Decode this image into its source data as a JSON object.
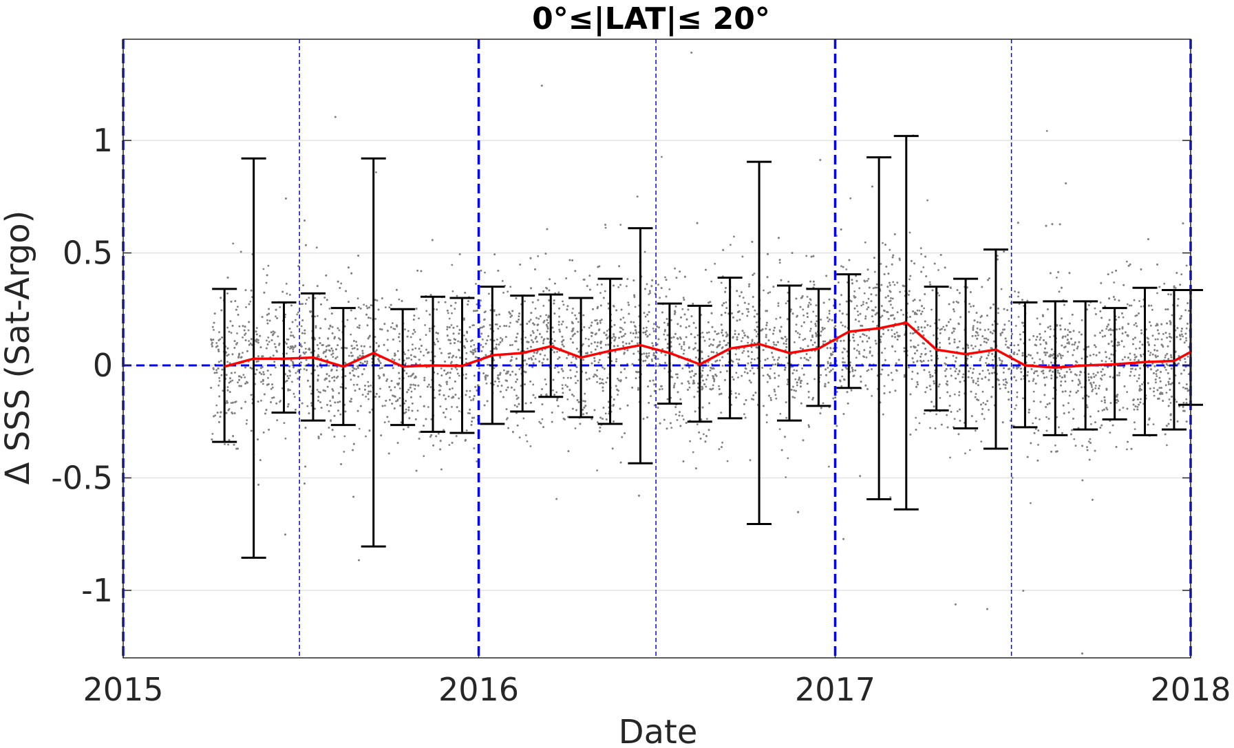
{
  "chart_data": {
    "type": "scatter",
    "title": "0°≤|LAT|≤ 20°",
    "xlabel": "Date",
    "ylabel": "Δ SSS (Sat-Argo)",
    "xlim": [
      "2015-01-01",
      "2018-01-01"
    ],
    "ylim": [
      -1.3,
      1.45
    ],
    "x_ticks": [
      {
        "value": "2015-01-01",
        "label": "2015"
      },
      {
        "value": "2016-01-01",
        "label": "2016"
      },
      {
        "value": "2017-01-01",
        "label": "2017"
      },
      {
        "value": "2018-01-01",
        "label": "2018"
      }
    ],
    "y_ticks": [
      {
        "value": -1,
        "label": "-1"
      },
      {
        "value": -0.5,
        "label": "-0.5"
      },
      {
        "value": 0,
        "label": "0"
      },
      {
        "value": 0.5,
        "label": "0.5"
      },
      {
        "value": 1,
        "label": "1"
      }
    ],
    "grid": "horizontal",
    "colors": {
      "scatter": "#808080",
      "mean_line": "#ff0000",
      "error_bars": "#000000",
      "reference_lines": "#0000ff",
      "grid": "#e3e3e3",
      "axes": "#262626"
    },
    "vertical_reference_lines": [
      {
        "date": "2015-01-01",
        "style": "thick-dashed"
      },
      {
        "date": "2015-07-01",
        "style": "thin-dashed"
      },
      {
        "date": "2016-01-01",
        "style": "thick-dashed"
      },
      {
        "date": "2016-07-01",
        "style": "thin-dashed"
      },
      {
        "date": "2017-01-01",
        "style": "thick-dashed"
      },
      {
        "date": "2017-07-01",
        "style": "thin-dashed"
      },
      {
        "date": "2018-01-01",
        "style": "thick-dashed"
      }
    ],
    "horizontal_reference_line": {
      "y": 0,
      "style": "dashed"
    },
    "scatter_cloud": {
      "date_start": "2015-04-01",
      "date_end": "2018-01-01",
      "typical_spread": 0.3
    },
    "monthly_stats": [
      {
        "date": "2015-04-15",
        "mean": -0.005,
        "lower": -0.34,
        "upper": 0.34
      },
      {
        "date": "2015-05-15",
        "mean": 0.03,
        "lower": -0.855,
        "upper": 0.92
      },
      {
        "date": "2015-06-15",
        "mean": 0.03,
        "lower": -0.21,
        "upper": 0.28
      },
      {
        "date": "2015-07-15",
        "mean": 0.035,
        "lower": -0.245,
        "upper": 0.32
      },
      {
        "date": "2015-08-15",
        "mean": -0.005,
        "lower": -0.265,
        "upper": 0.255
      },
      {
        "date": "2015-09-15",
        "mean": 0.055,
        "lower": -0.805,
        "upper": 0.92
      },
      {
        "date": "2015-10-15",
        "mean": -0.005,
        "lower": -0.265,
        "upper": 0.25
      },
      {
        "date": "2015-11-15",
        "mean": 0.0,
        "lower": -0.295,
        "upper": 0.305
      },
      {
        "date": "2015-12-15",
        "mean": -0.002,
        "lower": -0.3,
        "upper": 0.3
      },
      {
        "date": "2016-01-15",
        "mean": 0.045,
        "lower": -0.26,
        "upper": 0.35
      },
      {
        "date": "2016-02-15",
        "mean": 0.055,
        "lower": -0.205,
        "upper": 0.31
      },
      {
        "date": "2016-03-15",
        "mean": 0.085,
        "lower": -0.14,
        "upper": 0.315
      },
      {
        "date": "2016-04-15",
        "mean": 0.035,
        "lower": -0.23,
        "upper": 0.3
      },
      {
        "date": "2016-05-15",
        "mean": 0.065,
        "lower": -0.26,
        "upper": 0.385
      },
      {
        "date": "2016-06-15",
        "mean": 0.09,
        "lower": -0.435,
        "upper": 0.61
      },
      {
        "date": "2016-07-15",
        "mean": 0.055,
        "lower": -0.17,
        "upper": 0.275
      },
      {
        "date": "2016-08-15",
        "mean": 0.005,
        "lower": -0.25,
        "upper": 0.265
      },
      {
        "date": "2016-09-15",
        "mean": 0.075,
        "lower": -0.235,
        "upper": 0.39
      },
      {
        "date": "2016-10-15",
        "mean": 0.095,
        "lower": -0.705,
        "upper": 0.905
      },
      {
        "date": "2016-11-15",
        "mean": 0.055,
        "lower": -0.245,
        "upper": 0.355
      },
      {
        "date": "2016-12-15",
        "mean": 0.075,
        "lower": -0.18,
        "upper": 0.34
      },
      {
        "date": "2017-01-15",
        "mean": 0.15,
        "lower": -0.1,
        "upper": 0.405
      },
      {
        "date": "2017-02-15",
        "mean": 0.165,
        "lower": -0.595,
        "upper": 0.925
      },
      {
        "date": "2017-03-15",
        "mean": 0.19,
        "lower": -0.64,
        "upper": 1.02
      },
      {
        "date": "2017-04-15",
        "mean": 0.07,
        "lower": -0.2,
        "upper": 0.35
      },
      {
        "date": "2017-05-15",
        "mean": 0.05,
        "lower": -0.28,
        "upper": 0.385
      },
      {
        "date": "2017-06-15",
        "mean": 0.07,
        "lower": -0.37,
        "upper": 0.515
      },
      {
        "date": "2017-07-15",
        "mean": 0.0,
        "lower": -0.275,
        "upper": 0.28
      },
      {
        "date": "2017-08-15",
        "mean": -0.01,
        "lower": -0.31,
        "upper": 0.285
      },
      {
        "date": "2017-09-15",
        "mean": 0.0,
        "lower": -0.285,
        "upper": 0.285
      },
      {
        "date": "2017-10-15",
        "mean": 0.005,
        "lower": -0.24,
        "upper": 0.255
      },
      {
        "date": "2017-11-15",
        "mean": 0.015,
        "lower": -0.31,
        "upper": 0.345
      },
      {
        "date": "2017-12-15",
        "mean": 0.02,
        "lower": -0.285,
        "upper": 0.335
      },
      {
        "date": "2018-01-01",
        "mean": 0.06,
        "lower": -0.175,
        "upper": 0.335
      }
    ]
  }
}
